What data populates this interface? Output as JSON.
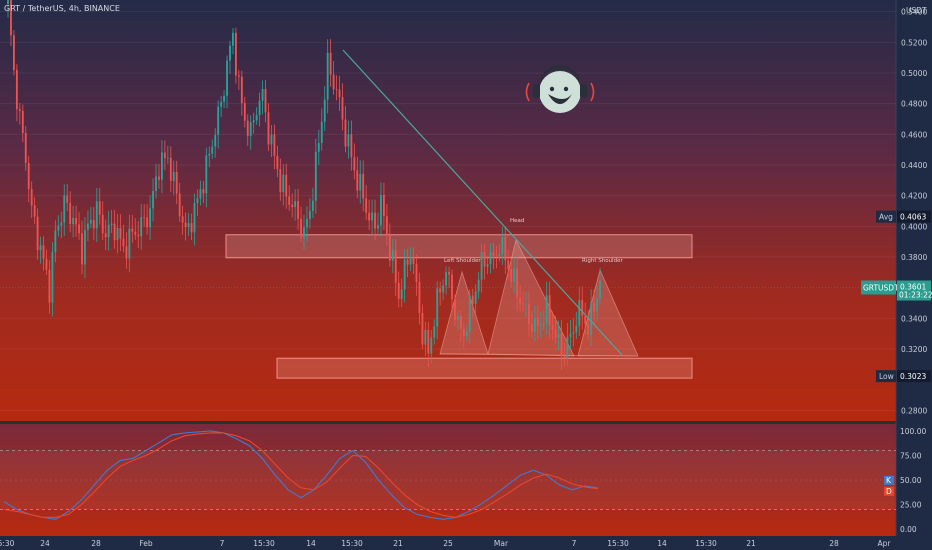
{
  "header": {
    "symbol_title": "GRT / TetherUS, 4h, BINANCE"
  },
  "colors": {
    "up": "#26a69a",
    "down": "#ef5350",
    "trendline": "#4aa89c",
    "zone_border": "#ef8e8a",
    "stoch_k": "#3f7ad1",
    "stoch_d": "#e8462b"
  },
  "icons": {
    "logo": "monkey-headphones-logo-icon"
  },
  "chart_data": [
    {
      "type": "candlestick",
      "title": "",
      "currency_label": "USDT",
      "y_ticks": [
        "0.5400",
        "0.5200",
        "0.5000",
        "0.4800",
        "0.4600",
        "0.4400",
        "0.4200",
        "0.4000",
        "0.3800",
        "0.3400",
        "0.3200",
        "0.2800"
      ],
      "ylim": [
        0.275,
        0.545
      ],
      "x_ticks": [
        "5:30",
        "24",
        "28",
        "Feb",
        "7",
        "15:30",
        "14",
        "15:30",
        "21",
        "25",
        "Mar",
        "7",
        "15:30",
        "14",
        "15:30",
        "21",
        "28",
        "Apr"
      ],
      "price_tags": [
        {
          "label": "Avg",
          "value": "0.4063"
        },
        {
          "label": "GRTUSDT",
          "value": "0.3601",
          "sub": "01:23:22"
        },
        {
          "label": "Low",
          "value": "0.3023"
        }
      ],
      "annotations": [
        "Head",
        "Left Shoulder",
        "Right Shoulder"
      ],
      "resistance_zone": [
        0.3795,
        0.3945
      ],
      "support_zone": [
        0.301,
        0.314
      ],
      "path_points": [
        [
          0,
          0.545
        ],
        [
          2,
          0.5
        ],
        [
          4,
          0.47
        ],
        [
          6,
          0.445
        ],
        [
          8,
          0.41
        ],
        [
          11,
          0.385
        ],
        [
          14,
          0.36
        ],
        [
          16,
          0.395
        ],
        [
          19,
          0.415
        ],
        [
          22,
          0.405
        ],
        [
          25,
          0.385
        ],
        [
          27,
          0.4
        ],
        [
          30,
          0.41
        ],
        [
          33,
          0.395
        ],
        [
          36,
          0.4
        ],
        [
          39,
          0.385
        ],
        [
          42,
          0.395
        ],
        [
          45,
          0.4
        ],
        [
          48,
          0.41
        ],
        [
          51,
          0.44
        ],
        [
          54,
          0.445
        ],
        [
          57,
          0.42
        ],
        [
          60,
          0.395
        ],
        [
          63,
          0.41
        ],
        [
          66,
          0.43
        ],
        [
          69,
          0.455
        ],
        [
          72,
          0.48
        ],
        [
          74,
          0.505
        ],
        [
          76,
          0.525
        ],
        [
          78,
          0.49
        ],
        [
          80,
          0.47
        ],
        [
          82,
          0.46
        ],
        [
          84,
          0.478
        ],
        [
          86,
          0.485
        ],
        [
          88,
          0.462
        ],
        [
          90,
          0.445
        ],
        [
          92,
          0.43
        ],
        [
          94,
          0.42
        ],
        [
          96,
          0.415
        ],
        [
          98,
          0.405
        ],
        [
          100,
          0.395
        ],
        [
          102,
          0.41
        ],
        [
          104,
          0.44
        ],
        [
          106,
          0.47
        ],
        [
          108,
          0.505
        ],
        [
          110,
          0.495
        ],
        [
          112,
          0.48
        ],
        [
          114,
          0.46
        ],
        [
          116,
          0.445
        ],
        [
          118,
          0.43
        ],
        [
          120,
          0.42
        ],
        [
          122,
          0.405
        ],
        [
          124,
          0.4
        ],
        [
          126,
          0.415
        ],
        [
          128,
          0.395
        ],
        [
          130,
          0.375
        ],
        [
          132,
          0.355
        ],
        [
          134,
          0.37
        ],
        [
          136,
          0.385
        ],
        [
          138,
          0.36
        ],
        [
          140,
          0.33
        ],
        [
          142,
          0.318
        ],
        [
          144,
          0.34
        ],
        [
          146,
          0.36
        ],
        [
          148,
          0.37
        ],
        [
          150,
          0.355
        ],
        [
          152,
          0.335
        ],
        [
          154,
          0.33
        ],
        [
          156,
          0.345
        ],
        [
          158,
          0.36
        ],
        [
          160,
          0.375
        ],
        [
          162,
          0.38
        ],
        [
          164,
          0.378
        ],
        [
          166,
          0.388
        ],
        [
          168,
          0.38
        ],
        [
          170,
          0.368
        ],
        [
          172,
          0.358
        ],
        [
          174,
          0.348
        ],
        [
          176,
          0.34
        ],
        [
          178,
          0.333
        ],
        [
          180,
          0.338
        ],
        [
          182,
          0.345
        ],
        [
          184,
          0.335
        ],
        [
          186,
          0.322
        ],
        [
          188,
          0.318
        ],
        [
          190,
          0.328
        ],
        [
          192,
          0.34
        ],
        [
          194,
          0.345
        ],
        [
          196,
          0.332
        ],
        [
          198,
          0.35
        ],
        [
          200,
          0.362
        ]
      ]
    },
    {
      "type": "line",
      "title": "",
      "y_ticks": [
        "100.00",
        "75.00",
        "50.00",
        "25.00",
        "0.00"
      ],
      "ylim": [
        -5,
        105
      ],
      "legend": [
        "K",
        "D"
      ],
      "k_value": "42",
      "d_value": "41",
      "series": [
        {
          "values": [
            28,
            20,
            15,
            12,
            10,
            18,
            30,
            45,
            60,
            70,
            72,
            80,
            88,
            96,
            98,
            99,
            100,
            98,
            92,
            85,
            72,
            55,
            40,
            32,
            40,
            55,
            72,
            80,
            68,
            50,
            35,
            22,
            15,
            12,
            10,
            12,
            18,
            26,
            35,
            45,
            55,
            60,
            55,
            45,
            40,
            44,
            42
          ]
        },
        {
          "values": [
            20,
            18,
            15,
            12,
            12,
            15,
            25,
            38,
            52,
            64,
            70,
            75,
            82,
            90,
            95,
            97,
            98,
            98,
            95,
            90,
            80,
            66,
            52,
            42,
            40,
            48,
            62,
            75,
            74,
            62,
            48,
            35,
            25,
            18,
            14,
            12,
            15,
            20,
            28,
            36,
            45,
            52,
            56,
            52,
            46,
            43,
            41
          ]
        }
      ]
    }
  ]
}
